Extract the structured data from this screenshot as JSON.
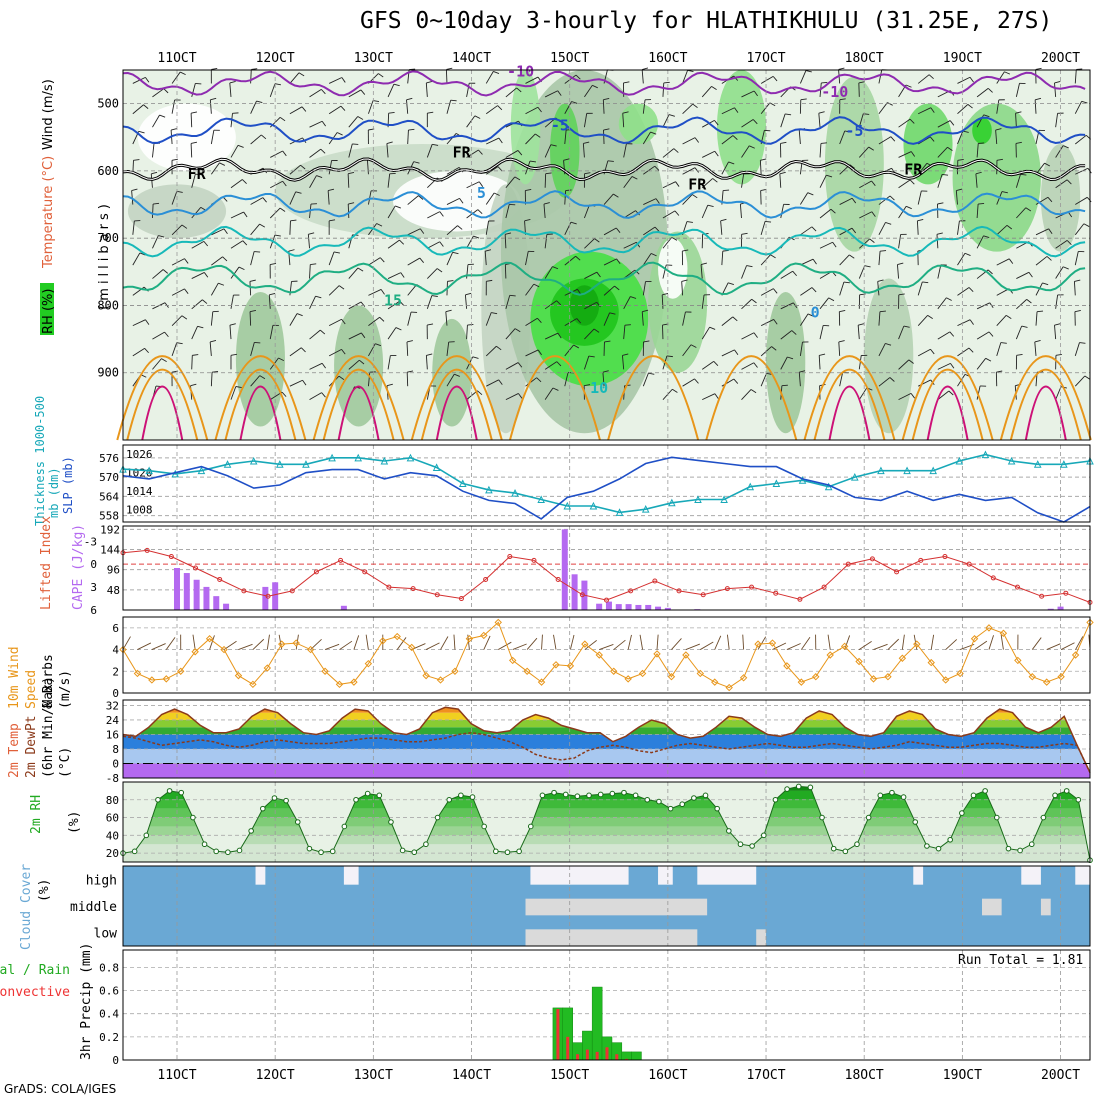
{
  "title": "GFS 0~10day 3-hourly for HLATHIKHULU (31.25E, 27S)",
  "credit": "GrADS: COLA/IGES",
  "run_total": "Run Total = 1.81",
  "chart_data": [
    {
      "type": "contour",
      "panel": "upper-air",
      "x_ticks": [
        "11OCT",
        "12OCT",
        "13OCT",
        "14OCT",
        "15OCT",
        "16OCT",
        "17OCT",
        "18OCT",
        "19OCT",
        "20OCT"
      ],
      "ylabel_parts": [
        "RH (%)",
        "Temperature (°C)",
        "Wind (m/s)"
      ],
      "yaxis_title": "(millibars)",
      "y_ticks": [
        500,
        600,
        700,
        800,
        900
      ],
      "ylim": [
        1000,
        450
      ],
      "contour_labels": [
        {
          "text": "-10",
          "day": 14.5,
          "p": 460,
          "color": "#8e2bb0"
        },
        {
          "text": "-10",
          "day": 17.7,
          "p": 490,
          "color": "#8e2bb0"
        },
        {
          "text": "-5",
          "day": 14.9,
          "p": 540,
          "color": "#1f4fc6"
        },
        {
          "text": "-5",
          "day": 17.9,
          "p": 548,
          "color": "#1f4fc6"
        },
        {
          "text": "FR",
          "day": 13.9,
          "p": 580,
          "color": "#000000"
        },
        {
          "text": "FR",
          "day": 11.2,
          "p": 612,
          "color": "#000000"
        },
        {
          "text": "FR",
          "day": 16.3,
          "p": 628,
          "color": "#000000"
        },
        {
          "text": "FR",
          "day": 18.5,
          "p": 605,
          "color": "#000000"
        },
        {
          "text": "5",
          "day": 14.1,
          "p": 640,
          "color": "#2b8fd6"
        },
        {
          "text": "15",
          "day": 13.2,
          "p": 800,
          "color": "#1fae83"
        },
        {
          "text": "10",
          "day": 15.3,
          "p": 930,
          "color": "#17b9b9"
        },
        {
          "text": "0",
          "day": 17.5,
          "p": 818,
          "color": "#2b8fd6"
        }
      ]
    },
    {
      "type": "line",
      "panel": "thickness-slp",
      "ylabel_parts": [
        "Thickness 1000-500mb (dm)",
        "SLP (mb)"
      ],
      "left_ticks": [
        558,
        564,
        570,
        576
      ],
      "right_ticks": [
        1008,
        1014,
        1020,
        1026
      ],
      "series": [
        {
          "color": "#17a8b8",
          "axis": "left",
          "values": [
            572.5,
            572,
            571,
            572,
            574,
            575,
            574,
            574,
            576,
            576,
            575,
            576,
            573,
            568,
            566,
            565,
            563,
            561,
            561,
            559,
            560,
            562,
            563,
            563,
            567,
            568,
            569,
            567,
            570,
            572,
            572,
            572,
            575,
            577,
            575,
            574,
            574,
            575
          ]
        },
        {
          "color": "#1f4fc6",
          "axis": "right",
          "values": [
            1019,
            1018,
            1020,
            1022,
            1019,
            1015,
            1016,
            1020,
            1021,
            1021,
            1018,
            1020,
            1019,
            1014,
            1011,
            1010,
            1005,
            1012,
            1014,
            1018,
            1023,
            1025,
            1024,
            1023,
            1022,
            1022,
            1018,
            1016,
            1012,
            1011,
            1014,
            1011,
            1013,
            1011,
            1012,
            1007,
            1004,
            1009
          ]
        }
      ]
    },
    {
      "type": "bar-line",
      "panel": "cape-li",
      "ylabel_parts": [
        "Lifted Index",
        "CAPE (J/kg)"
      ],
      "left_ticks": [
        "-3",
        "0",
        "3",
        "6"
      ],
      "right_ticks": [
        48,
        96,
        144,
        192
      ],
      "cape": [
        [
          11.0,
          100
        ],
        [
          11.1,
          88
        ],
        [
          11.2,
          72
        ],
        [
          11.3,
          55
        ],
        [
          11.4,
          33
        ],
        [
          11.5,
          15
        ],
        [
          11.9,
          55
        ],
        [
          12.0,
          66
        ],
        [
          12.7,
          10
        ],
        [
          14.95,
          192
        ],
        [
          15.05,
          85
        ],
        [
          15.15,
          70
        ],
        [
          15.3,
          15
        ],
        [
          15.4,
          20
        ],
        [
          15.5,
          14
        ],
        [
          15.6,
          14
        ],
        [
          15.7,
          12
        ],
        [
          15.8,
          12
        ],
        [
          15.9,
          8
        ],
        [
          16.0,
          5
        ],
        [
          16.3,
          2
        ],
        [
          19.9,
          3
        ],
        [
          20.0,
          8
        ]
      ],
      "lifted_index": [
        -1.5,
        -1.8,
        -1,
        0.5,
        2,
        3.5,
        4.2,
        3.5,
        1,
        -0.5,
        1,
        3,
        3.2,
        4,
        4.5,
        2,
        -1,
        -0.5,
        2,
        4,
        4.7,
        3.5,
        2.2,
        3.5,
        4,
        3.2,
        3,
        3.8,
        4.6,
        3,
        0,
        -0.7,
        1,
        -0.5,
        -1,
        0,
        1.8,
        3,
        4.2,
        3.8,
        5
      ]
    },
    {
      "type": "line",
      "panel": "wind10m",
      "ylabel_parts": [
        "10m Wind",
        "Speed",
        "& Barbs",
        "(m/s)"
      ],
      "y_ticks": [
        0,
        2,
        4,
        6
      ],
      "ylim": [
        0,
        7
      ],
      "values": [
        4,
        1.8,
        1.2,
        1.3,
        2,
        3.8,
        5,
        4,
        1.6,
        0.8,
        2.3,
        4.5,
        4.6,
        4,
        2,
        0.8,
        1,
        2.7,
        4.8,
        5.2,
        4.2,
        1.6,
        1.2,
        2,
        5,
        5.3,
        6.5,
        3,
        2,
        1,
        2.6,
        2.5,
        4.5,
        3.5,
        2,
        1.3,
        1.8,
        3.6,
        1.5,
        3.5,
        1.8,
        1,
        0.5,
        1.4,
        4.5,
        4.6,
        2.5,
        1,
        1.5,
        3.5,
        4.3,
        2.9,
        1.3,
        1.5,
        3.2,
        4.5,
        2.8,
        1.2,
        1.8,
        5,
        6,
        5.5,
        3,
        1.5,
        1,
        1.5,
        3.5,
        6.5
      ]
    },
    {
      "type": "area-line",
      "panel": "temp-dewpt",
      "ylabel_parts": [
        "2m Temp",
        "2m DewPt",
        "(6hr Min/Max)",
        "(°C)"
      ],
      "y_ticks": [
        -8,
        0,
        8,
        16,
        24,
        32
      ],
      "ylim": [
        -8,
        35
      ],
      "temperature": [
        16,
        15,
        20,
        27,
        30,
        27,
        21,
        17,
        17,
        19,
        26,
        30,
        28,
        22,
        17,
        16,
        18,
        25,
        30,
        29,
        22,
        17,
        16,
        19,
        28,
        31,
        30,
        22,
        18,
        17,
        18,
        24,
        27,
        25,
        21,
        19,
        17,
        17,
        12,
        15,
        20,
        24,
        22,
        16,
        14,
        15,
        20,
        26,
        25,
        20,
        16,
        15,
        17,
        25,
        29,
        27,
        20,
        16,
        15,
        17,
        26,
        29,
        27,
        19,
        16,
        15,
        17,
        25,
        30,
        28,
        20,
        17,
        20,
        26,
        10,
        -5
      ],
      "dewpoint": [
        15,
        14,
        12,
        10,
        11,
        12,
        13,
        12,
        10,
        9,
        10,
        12,
        13,
        12,
        11,
        11,
        11,
        12,
        13,
        14,
        14,
        13,
        12,
        12,
        13,
        14,
        16,
        17,
        16,
        14,
        12,
        9,
        5,
        3,
        2,
        3,
        7,
        9,
        10,
        9,
        7,
        6,
        8,
        10,
        11,
        10,
        9,
        8,
        9,
        10,
        11,
        10,
        9,
        9,
        10,
        11,
        10,
        9,
        8,
        9,
        10,
        12,
        11,
        10,
        9,
        9,
        10,
        11,
        11,
        10,
        9,
        9,
        10,
        11,
        10,
        -5
      ]
    },
    {
      "type": "area-line",
      "panel": "rh2m",
      "ylabel_parts": [
        "2m RH",
        "(%)"
      ],
      "y_ticks": [
        20,
        40,
        60,
        80
      ],
      "ylim": [
        10,
        100
      ],
      "values": [
        20,
        22,
        40,
        80,
        90,
        88,
        60,
        30,
        22,
        21,
        23,
        45,
        70,
        82,
        79,
        55,
        25,
        21,
        22,
        50,
        80,
        87,
        85,
        55,
        23,
        21,
        30,
        60,
        80,
        85,
        83,
        50,
        22,
        21,
        22,
        50,
        85,
        88,
        86,
        84,
        85,
        86,
        87,
        88,
        85,
        80,
        78,
        70,
        75,
        82,
        85,
        70,
        45,
        30,
        28,
        40,
        80,
        92,
        95,
        94,
        60,
        25,
        22,
        30,
        60,
        85,
        88,
        83,
        55,
        28,
        25,
        35,
        65,
        85,
        90,
        60,
        25,
        23,
        30,
        60,
        85,
        90,
        80,
        12
      ]
    },
    {
      "type": "heatmap",
      "panel": "cloud-cover",
      "ylabel_parts": [
        "Cloud Cover",
        "(%)"
      ],
      "levels": [
        "high",
        "middle",
        "low"
      ]
    },
    {
      "type": "bar",
      "panel": "precip3hr",
      "ylabel_parts": [
        "Total / Rain",
        "Convective",
        "3hr Precip (mm)"
      ],
      "y_ticks": [
        0,
        0.2,
        0.4,
        0.6,
        0.8
      ],
      "ylim": [
        0,
        0.95
      ],
      "total": [
        [
          14.88,
          0.45
        ],
        [
          14.98,
          0.45
        ],
        [
          15.08,
          0.15
        ],
        [
          15.18,
          0.25
        ],
        [
          15.28,
          0.63
        ],
        [
          15.38,
          0.2
        ],
        [
          15.48,
          0.15
        ],
        [
          15.58,
          0.07
        ],
        [
          15.68,
          0.07
        ]
      ],
      "convective": [
        [
          14.88,
          0.44
        ],
        [
          14.98,
          0.2
        ],
        [
          15.08,
          0.05
        ],
        [
          15.18,
          0.09
        ],
        [
          15.28,
          0.07
        ],
        [
          15.38,
          0.11
        ],
        [
          15.48,
          0.05
        ],
        [
          15.58,
          0.01
        ],
        [
          15.68,
          0.0
        ]
      ]
    }
  ]
}
